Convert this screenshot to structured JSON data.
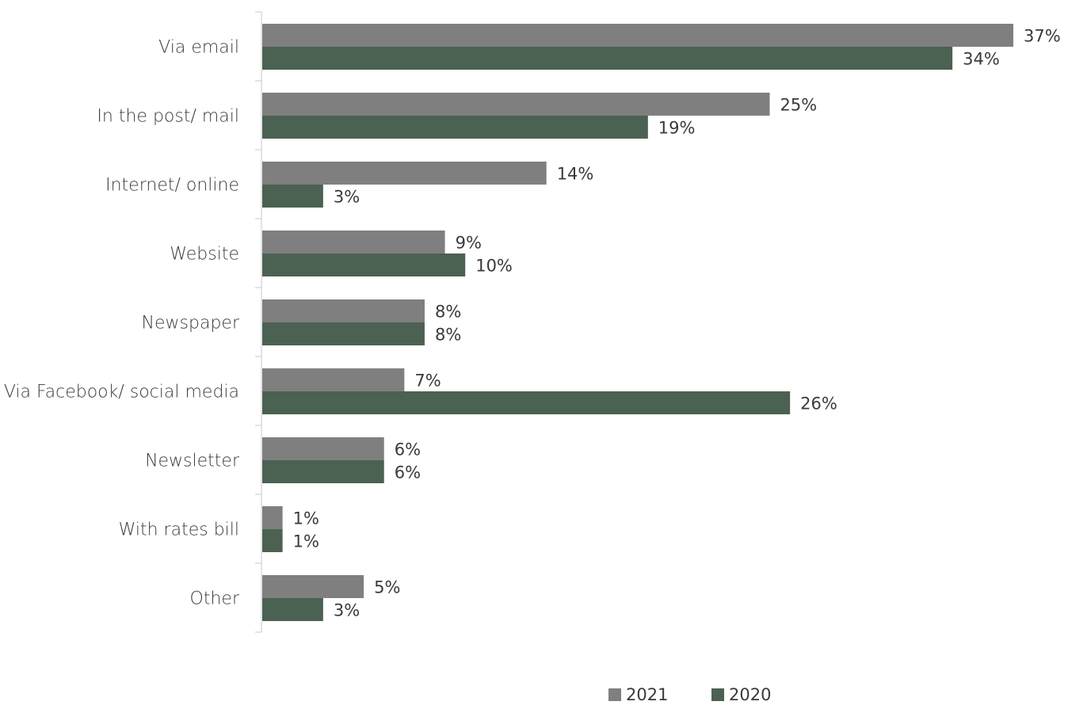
{
  "chart_data": {
    "type": "bar",
    "orientation": "horizontal",
    "categories": [
      "Via email",
      "In the post/ mail",
      "Internet/ online",
      "Website",
      "Newspaper",
      "Via Facebook/ social media",
      "Newsletter",
      "With rates bill",
      "Other"
    ],
    "series": [
      {
        "name": "2021",
        "color": "#7f7f7f",
        "values": [
          37,
          25,
          14,
          9,
          8,
          7,
          6,
          1,
          5
        ],
        "labels": [
          "37%",
          "25%",
          "14%",
          "9%",
          "8%",
          "7%",
          "6%",
          "1%",
          "5%"
        ]
      },
      {
        "name": "2020",
        "color": "#4b6152",
        "values": [
          34,
          19,
          3,
          10,
          8,
          26,
          6,
          1,
          3
        ],
        "labels": [
          "34%",
          "19%",
          "3%",
          "10%",
          "8%",
          "26%",
          "6%",
          "1%",
          "3%"
        ]
      }
    ],
    "xlim": [
      0,
      37
    ],
    "grid": false,
    "legend": "bottom-center",
    "title": "",
    "xlabel": "",
    "ylabel": ""
  }
}
